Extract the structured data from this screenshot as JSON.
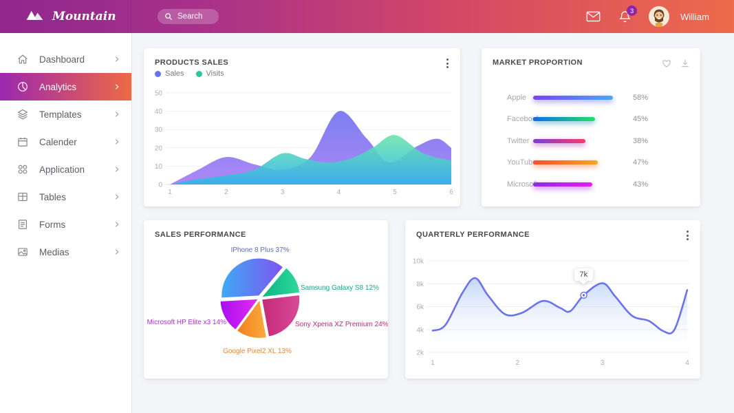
{
  "header": {
    "brand": "Mountain",
    "search_placeholder": "Search",
    "notification_count": "3",
    "user_name": "William",
    "gradient": [
      "#90278e",
      "#ee6a4b"
    ],
    "badge_color": "#8e24aa"
  },
  "sidebar": {
    "items": [
      {
        "label": "Dashboard",
        "icon": "home-icon",
        "active": false
      },
      {
        "label": "Analytics",
        "icon": "pie-icon",
        "active": true
      },
      {
        "label": "Templates",
        "icon": "layers-icon",
        "active": false
      },
      {
        "label": "Calender",
        "icon": "calendar-icon",
        "active": false
      },
      {
        "label": "Application",
        "icon": "apps-icon",
        "active": false
      },
      {
        "label": "Tables",
        "icon": "table-icon",
        "active": false
      },
      {
        "label": "Forms",
        "icon": "forms-icon",
        "active": false
      },
      {
        "label": "Medias",
        "icon": "media-icon",
        "active": false
      }
    ],
    "active_gradient": [
      "#9c27b0",
      "#ee6a43"
    ]
  },
  "chart_data": [
    {
      "type": "area",
      "title": "PRODUCTS SALES",
      "xlim": [
        1,
        6
      ],
      "ylim": [
        0,
        50
      ],
      "x_ticks": [
        "1",
        "2",
        "3",
        "4",
        "5",
        "6"
      ],
      "y_ticks": [
        "0",
        "10",
        "20",
        "30",
        "40",
        "50"
      ],
      "grid": true,
      "legend_position": "top-left",
      "series": [
        {
          "name": "Sales",
          "dot": "#6a71f2",
          "fill_top": "#7478f1",
          "fill_bottom": "#a981f4",
          "x": [
            1,
            1.5,
            2,
            2.5,
            3,
            3.5,
            4,
            4.5,
            4.9,
            5.4,
            5.75,
            6
          ],
          "y": [
            0,
            8,
            15,
            11,
            8,
            15,
            40,
            25,
            12,
            21,
            25,
            20
          ]
        },
        {
          "name": "Visits",
          "dot": "#2bc79c",
          "fill_top": "#6ce6a9",
          "fill_bottom": "#2fb3ec",
          "x": [
            1,
            1.5,
            2,
            2.5,
            3,
            3.4,
            3.8,
            4.2,
            4.6,
            5,
            5.5,
            6
          ],
          "y": [
            0,
            3,
            5,
            8,
            17,
            14,
            12,
            14,
            20,
            27,
            17,
            13
          ]
        }
      ]
    },
    {
      "type": "bar",
      "title": "MARKET PROPORTION",
      "orientation": "horizontal",
      "items": [
        {
          "label": "Apple",
          "value": 58,
          "colors": [
            "#7a42f8",
            "#45aaf8"
          ]
        },
        {
          "label": "Facebook",
          "value": 45,
          "colors": [
            "#1569e8",
            "#21e065"
          ]
        },
        {
          "label": "Twitter",
          "value": 38,
          "colors": [
            "#7d3bd4",
            "#f43f68"
          ]
        },
        {
          "label": "YouTube",
          "value": 47,
          "colors": [
            "#f4502e",
            "#f5a623"
          ]
        },
        {
          "label": "Microsoft",
          "value": 43,
          "colors": [
            "#8a2be2",
            "#e41ef0"
          ]
        }
      ]
    },
    {
      "type": "pie",
      "title": "SALES PERFORMANCE",
      "start_angle": 50,
      "slices": [
        {
          "label": "Samsung Galaxy S8",
          "pct": 12,
          "colors": [
            "#0fb584",
            "#2ed89a"
          ],
          "label_color": "#13a98c"
        },
        {
          "label": "Sony Xperia XZ Premium",
          "pct": 24,
          "colors": [
            "#c42a78",
            "#d84a96"
          ],
          "label_color": "#c42a78"
        },
        {
          "label": "Google Pixel2 XL",
          "pct": 13,
          "colors": [
            "#f0801f",
            "#fbaa3c"
          ],
          "label_color": "#f5822a"
        },
        {
          "label": "Microsoft HP Elite x3",
          "pct": 14,
          "colors": [
            "#a90df0",
            "#e12cf2"
          ],
          "label_color": "#b429e3"
        },
        {
          "label": "IPhone 8 Plus",
          "pct": 37,
          "colors": [
            "#3fa9f5",
            "#7d55f0"
          ],
          "label_color": "#5c6bc0"
        }
      ]
    },
    {
      "type": "line",
      "title": "QUARTERLY PERFORMANCE",
      "xlim": [
        1,
        4
      ],
      "ylim": [
        2,
        10
      ],
      "x_ticks": [
        "1",
        "2",
        "3",
        "4"
      ],
      "y_ticks": [
        "2k",
        "4k",
        "6k",
        "8k",
        "10k"
      ],
      "grid": true,
      "line_color": "#6b72ee",
      "x": [
        1,
        1.15,
        1.35,
        1.5,
        1.65,
        1.85,
        2.05,
        2.3,
        2.5,
        2.62,
        2.78,
        3,
        3.15,
        3.35,
        3.55,
        3.72,
        3.85,
        4
      ],
      "y": [
        3.9,
        4.4,
        7.2,
        8.5,
        7.0,
        5.35,
        5.45,
        6.5,
        5.9,
        5.6,
        7.0,
        8.05,
        6.9,
        5.2,
        4.75,
        3.85,
        4.0,
        7.45
      ],
      "tooltip": {
        "label": "7k",
        "x": 2.78,
        "y": 7
      }
    }
  ]
}
